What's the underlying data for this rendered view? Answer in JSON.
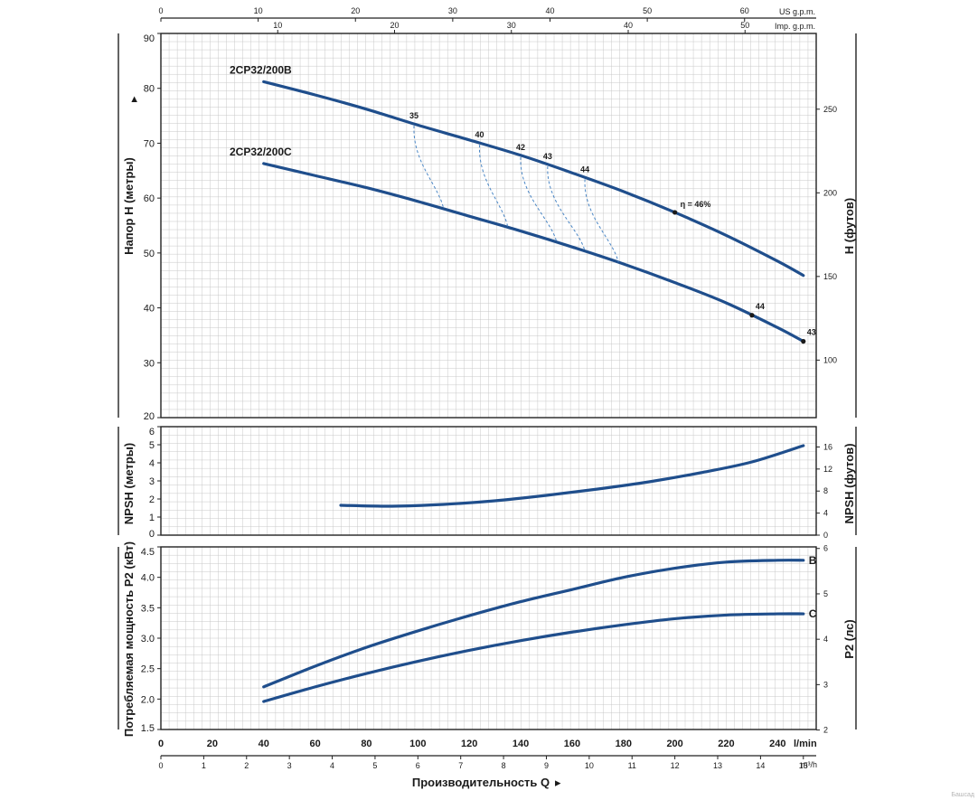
{
  "chart_data": [
    {
      "panel": "head",
      "type": "line",
      "ylabel": "Напор H (метры)",
      "ylabel_arrow": "▸",
      "y2label": "H (футов)",
      "ylim": [
        20,
        90
      ],
      "y_ticks": [
        "90",
        "80",
        "70",
        "60",
        "50",
        "40",
        "30",
        "20"
      ],
      "y2_ticks": [
        "250",
        "200",
        "150",
        "100"
      ],
      "grid": true,
      "series": [
        {
          "name": "2CP32/200B",
          "x": [
            40,
            60,
            80,
            100,
            120,
            140,
            160,
            180,
            200,
            220,
            240,
            250
          ],
          "y": [
            81.2,
            78.8,
            76.2,
            73.3,
            70.6,
            67.8,
            64.6,
            61.2,
            57.4,
            53.2,
            48.5,
            45.9
          ]
        },
        {
          "name": "2CP32/200C",
          "x": [
            40,
            60,
            80,
            100,
            120,
            140,
            160,
            180,
            200,
            220,
            240,
            250
          ],
          "y": [
            66.3,
            64.1,
            61.9,
            59.4,
            56.7,
            54.0,
            51.1,
            48.0,
            44.6,
            40.9,
            36.4,
            33.9
          ]
        }
      ],
      "efficiency_lines": [
        {
          "label": "35",
          "q_top": 98.5,
          "q_bottom": 110
        },
        {
          "label": "40",
          "q_top": 124,
          "q_bottom": 135
        },
        {
          "label": "42",
          "q_top": 140,
          "q_bottom": 154
        },
        {
          "label": "43",
          "q_top": 150.5,
          "q_bottom": 165
        },
        {
          "label": "44",
          "q_top": 165,
          "q_bottom": 178
        }
      ],
      "efficiency_markers": [
        {
          "label": "η = 46%",
          "q": 200
        },
        {
          "label": "44",
          "q": 230
        },
        {
          "label": "43",
          "q": 250
        }
      ]
    },
    {
      "panel": "npsh",
      "type": "line",
      "ylabel": "NPSH (метры)",
      "y2label": "NPSH (футов)",
      "ylim": [
        0,
        6
      ],
      "y_ticks": [
        "6",
        "5",
        "4",
        "3",
        "2",
        "1",
        "0"
      ],
      "y2_ticks": [
        "16",
        "12",
        "8",
        "4",
        "0"
      ],
      "grid": true,
      "series": [
        {
          "name": "",
          "x": [
            70,
            90,
            110,
            130,
            150,
            170,
            190,
            210,
            230,
            250
          ],
          "y": [
            1.65,
            1.6,
            1.7,
            1.9,
            2.2,
            2.55,
            2.95,
            3.45,
            4.05,
            4.95
          ]
        }
      ]
    },
    {
      "panel": "power",
      "type": "line",
      "ylabel": "Потребляемая мощность P2 (кВт)",
      "y2label": "P2 (лс)",
      "ylim": [
        1.5,
        4.5
      ],
      "y_ticks": [
        "4.5",
        "4.0",
        "3.5",
        "3.0",
        "2.5",
        "2.0",
        "1.5"
      ],
      "y2_ticks": [
        "6",
        "5",
        "4",
        "3",
        "2"
      ],
      "grid": true,
      "series": [
        {
          "name": "B",
          "x": [
            40,
            60,
            80,
            100,
            120,
            140,
            160,
            180,
            200,
            220,
            240,
            250
          ],
          "y": [
            2.2,
            2.54,
            2.85,
            3.12,
            3.37,
            3.6,
            3.8,
            4.0,
            4.15,
            4.25,
            4.28,
            4.28
          ]
        },
        {
          "name": "C",
          "x": [
            40,
            60,
            80,
            100,
            120,
            140,
            160,
            180,
            200,
            220,
            240,
            250
          ],
          "y": [
            1.96,
            2.2,
            2.42,
            2.62,
            2.8,
            2.96,
            3.1,
            3.22,
            3.32,
            3.38,
            3.4,
            3.4
          ]
        }
      ]
    }
  ],
  "axes": {
    "us_gpm": {
      "label": "US g.p.m.",
      "ticks": [
        "0",
        "10",
        "20",
        "30",
        "40",
        "50",
        "60"
      ]
    },
    "imp_gpm": {
      "label": "Imp. g.p.m.",
      "ticks": [
        "10",
        "20",
        "30",
        "40",
        "50"
      ]
    },
    "lmin": {
      "label": "l/min",
      "ticks": [
        "0",
        "20",
        "40",
        "60",
        "80",
        "100",
        "120",
        "140",
        "160",
        "180",
        "200",
        "220",
        "240"
      ]
    },
    "m3h": {
      "label": "m³/h",
      "ticks": [
        "0",
        "1",
        "2",
        "3",
        "4",
        "5",
        "6",
        "7",
        "8",
        "9",
        "10",
        "11",
        "12",
        "13",
        "14",
        "15"
      ]
    },
    "xlabel": "Производительность Q",
    "xlabel_arrow": "▸"
  },
  "watermark": "Башсад"
}
